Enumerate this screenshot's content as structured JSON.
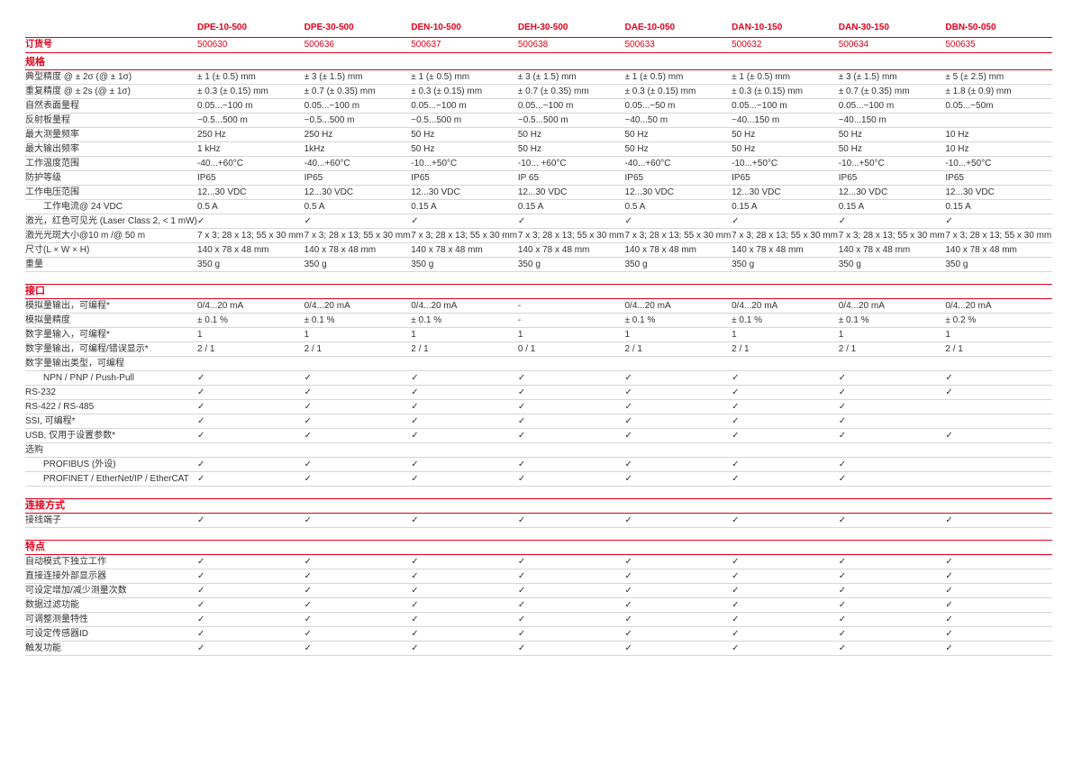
{
  "order_label": "订货号",
  "check_glyph": "✓",
  "colors": {
    "accent_red": "#e2001a",
    "separator_gray": "#d6d6d6",
    "body_text": "#333333"
  },
  "products": [
    {
      "name": "DPE-10-500",
      "order_no": "500630"
    },
    {
      "name": "DPE-30-500",
      "order_no": "500636"
    },
    {
      "name": "DEN-10-500",
      "order_no": "500637"
    },
    {
      "name": "DEH-30-500",
      "order_no": "500638"
    },
    {
      "name": "DAE-10-050",
      "order_no": "500633"
    },
    {
      "name": "DAN-10-150",
      "order_no": "500632"
    },
    {
      "name": "DAN-30-150",
      "order_no": "500634"
    },
    {
      "name": "DBN-50-050",
      "order_no": "500635"
    }
  ],
  "sections": [
    {
      "title": "规格",
      "rows": [
        {
          "label": "典型精度 @ ± 2σ (@ ± 1σ)",
          "indent": false,
          "values": [
            "± 1 (± 0.5) mm",
            "± 3 (± 1.5) mm",
            "± 1 (± 0.5) mm",
            "± 3 (± 1.5) mm",
            "± 1 (± 0.5) mm",
            "± 1 (± 0.5) mm",
            "± 3 (± 1.5) mm",
            "± 5 (± 2.5) mm"
          ]
        },
        {
          "label": "重复精度 @ ± 2s (@ ± 1σ)",
          "indent": false,
          "values": [
            "± 0.3 (± 0.15) mm",
            "± 0.7 (± 0.35) mm",
            "± 0.3 (± 0.15) mm",
            "± 0.7 (± 0.35) mm",
            "± 0.3 (± 0.15) mm",
            "± 0.3 (± 0.15) mm",
            "± 0.7 (± 0.35) mm",
            "± 1.8 (± 0.9) mm"
          ]
        },
        {
          "label": "自然表面量程",
          "indent": false,
          "values": [
            "0.05...~100 m",
            "0.05...~100 m",
            "0.05...~100 m",
            "0.05...~100 m",
            "0.05...~50 m",
            "0.05...~100 m",
            "0.05...~100 m",
            "0.05...~50m"
          ]
        },
        {
          "label": "反射板量程",
          "indent": false,
          "values": [
            "~0.5...500 m",
            "~0.5...500 m",
            "~0.5...500 m",
            "~0.5...500 m",
            "~40...50 m",
            "~40...150 m",
            "~40...150 m",
            ""
          ]
        },
        {
          "label": "最大测量频率",
          "indent": false,
          "values": [
            "250 Hz",
            "250 Hz",
            "50 Hz",
            "50 Hz",
            "50 Hz",
            "50 Hz",
            "50 Hz",
            "10 Hz"
          ]
        },
        {
          "label": "最大输出频率",
          "indent": false,
          "values": [
            "1 kHz",
            "1kHz",
            "50 Hz",
            "50 Hz",
            "50 Hz",
            "50 Hz",
            "50 Hz",
            "10 Hz"
          ]
        },
        {
          "label": "工作温度范围",
          "indent": false,
          "values": [
            "-40...+60°C",
            "-40...+60°C",
            "-10...+50°C",
            "-10... +60°C",
            "-40...+60°C",
            "-10...+50°C",
            "-10...+50°C",
            "-10...+50°C"
          ]
        },
        {
          "label": "防护等级",
          "indent": false,
          "values": [
            "IP65",
            "IP65",
            "IP65",
            "IP 65",
            "IP65",
            "IP65",
            "IP65",
            "IP65"
          ]
        },
        {
          "label": "工作电压范围",
          "indent": false,
          "values": [
            "12...30 VDC",
            "12...30 VDC",
            "12...30 VDC",
            "12...30 VDC",
            "12...30 VDC",
            "12...30 VDC",
            "12...30 VDC",
            "12...30 VDC"
          ]
        },
        {
          "label": "工作电流@ 24 VDC",
          "indent": true,
          "values": [
            "0.5 A",
            "0.5 A",
            "0.15 A",
            "0.15 A",
            "0.5 A",
            "0.15 A",
            "0.15 A",
            "0.15 A"
          ]
        },
        {
          "label": "激光，红色可见光 (Laser Class 2, < 1 mW)",
          "indent": false,
          "values": [
            "✓",
            "✓",
            "✓",
            "✓",
            "✓",
            "✓",
            "✓",
            "✓"
          ]
        },
        {
          "label": "激光光斑大小@10 m /@ 50 m",
          "indent": false,
          "values": [
            "7 x 3; 28 x 13; 55 x 30 mm",
            "7 x 3; 28 x 13; 55 x 30 mm",
            "7 x 3; 28 x 13; 55 x 30 mm",
            "7 x 3; 28 x 13; 55 x 30 mm",
            "7 x 3; 28 x 13; 55 x 30 mm",
            "7 x 3; 28 x 13; 55 x 30 mm",
            "7 x 3; 28 x 13; 55 x 30 mm",
            "7 x 3; 28 x 13; 55 x 30 mm"
          ]
        },
        {
          "label": "尺寸(L × W × H)",
          "indent": false,
          "values": [
            "140 x 78 x 48 mm",
            "140 x 78 x 48 mm",
            "140 x 78 x 48 mm",
            "140 x 78 x 48 mm",
            "140 x 78 x 48 mm",
            "140 x 78 x 48 mm",
            "140 x 78 x 48 mm",
            "140 x 78 x 48 mm"
          ]
        },
        {
          "label": "重量",
          "indent": false,
          "values": [
            "350 g",
            "350 g",
            "350 g",
            "350 g",
            "350 g",
            "350 g",
            "350 g",
            "350 g"
          ]
        }
      ]
    },
    {
      "title": "接口",
      "rows": [
        {
          "label": "模拟量输出，可编程*",
          "indent": false,
          "values": [
            "0/4...20 mA",
            "0/4...20 mA",
            "0/4...20 mA",
            "-",
            "0/4...20 mA",
            "0/4...20 mA",
            "0/4...20 mA",
            "0/4...20 mA"
          ]
        },
        {
          "label": "模拟量精度",
          "indent": false,
          "values": [
            "± 0.1 %",
            "± 0.1 %",
            "± 0.1 %",
            "-",
            "± 0.1 %",
            "± 0.1 %",
            "± 0.1 %",
            "± 0.2 %"
          ]
        },
        {
          "label": "数字量输入，可编程*",
          "indent": false,
          "values": [
            "1",
            "1",
            "1",
            "1",
            "1",
            "1",
            "1",
            "1"
          ]
        },
        {
          "label": "数字量输出，可编程/错误显示*",
          "indent": false,
          "values": [
            "2 / 1",
            "2 / 1",
            "2 / 1",
            "0 / 1",
            "2 / 1",
            "2 / 1",
            "2 / 1",
            "2 / 1"
          ]
        },
        {
          "label": "数字量输出类型，可编程",
          "indent": false,
          "values": [
            "",
            "",
            "",
            "",
            "",
            "",
            "",
            ""
          ]
        },
        {
          "label": "NPN / PNP / Push-Pull",
          "indent": true,
          "values": [
            "✓",
            "✓",
            "✓",
            "✓",
            "✓",
            "✓",
            "✓",
            "✓"
          ]
        },
        {
          "label": "RS-232",
          "indent": false,
          "values": [
            "✓",
            "✓",
            "✓",
            "✓",
            "✓",
            "✓",
            "✓",
            "✓"
          ]
        },
        {
          "label": "RS-422 / RS-485",
          "indent": false,
          "values": [
            "✓",
            "✓",
            "✓",
            "✓",
            "✓",
            "✓",
            "✓",
            ""
          ]
        },
        {
          "label": "SSI, 可编程*",
          "indent": false,
          "values": [
            "✓",
            "✓",
            "✓",
            "✓",
            "✓",
            "✓",
            "✓",
            ""
          ]
        },
        {
          "label": "USB, 仅用于设置参数*",
          "indent": false,
          "values": [
            "✓",
            "✓",
            "✓",
            "✓",
            "✓",
            "✓",
            "✓",
            "✓"
          ]
        },
        {
          "label": "选购",
          "indent": false,
          "values": [
            "",
            "",
            "",
            "",
            "",
            "",
            "",
            ""
          ]
        },
        {
          "label": "PROFIBUS (外设)",
          "indent": true,
          "values": [
            "✓",
            "✓",
            "✓",
            "✓",
            "✓",
            "✓",
            "✓",
            ""
          ]
        },
        {
          "label": "PROFINET / EtherNet/IP / EtherCAT",
          "indent": true,
          "values": [
            "✓",
            "✓",
            "✓",
            "✓",
            "✓",
            "✓",
            "✓",
            ""
          ]
        }
      ]
    },
    {
      "title": "连接方式",
      "rows": [
        {
          "label": "接线端子",
          "indent": false,
          "values": [
            "✓",
            "✓",
            "✓",
            "✓",
            "✓",
            "✓",
            "✓",
            "✓"
          ]
        }
      ]
    },
    {
      "title": "特点",
      "rows": [
        {
          "label": "自动模式下独立工作",
          "indent": false,
          "values": [
            "✓",
            "✓",
            "✓",
            "✓",
            "✓",
            "✓",
            "✓",
            "✓"
          ]
        },
        {
          "label": "直接连接外部显示器",
          "indent": false,
          "values": [
            "✓",
            "✓",
            "✓",
            "✓",
            "✓",
            "✓",
            "✓",
            "✓"
          ]
        },
        {
          "label": "可设定增加/减少测量次数",
          "indent": false,
          "values": [
            "✓",
            "✓",
            "✓",
            "✓",
            "✓",
            "✓",
            "✓",
            "✓"
          ]
        },
        {
          "label": "数据过滤功能",
          "indent": false,
          "values": [
            "✓",
            "✓",
            "✓",
            "✓",
            "✓",
            "✓",
            "✓",
            "✓"
          ]
        },
        {
          "label": "可调整测量特性",
          "indent": false,
          "values": [
            "✓",
            "✓",
            "✓",
            "✓",
            "✓",
            "✓",
            "✓",
            "✓"
          ]
        },
        {
          "label": "可设定传感器ID",
          "indent": false,
          "values": [
            "✓",
            "✓",
            "✓",
            "✓",
            "✓",
            "✓",
            "✓",
            "✓"
          ]
        },
        {
          "label": "触发功能",
          "indent": false,
          "values": [
            "✓",
            "✓",
            "✓",
            "✓",
            "✓",
            "✓",
            "✓",
            "✓"
          ]
        }
      ]
    }
  ]
}
